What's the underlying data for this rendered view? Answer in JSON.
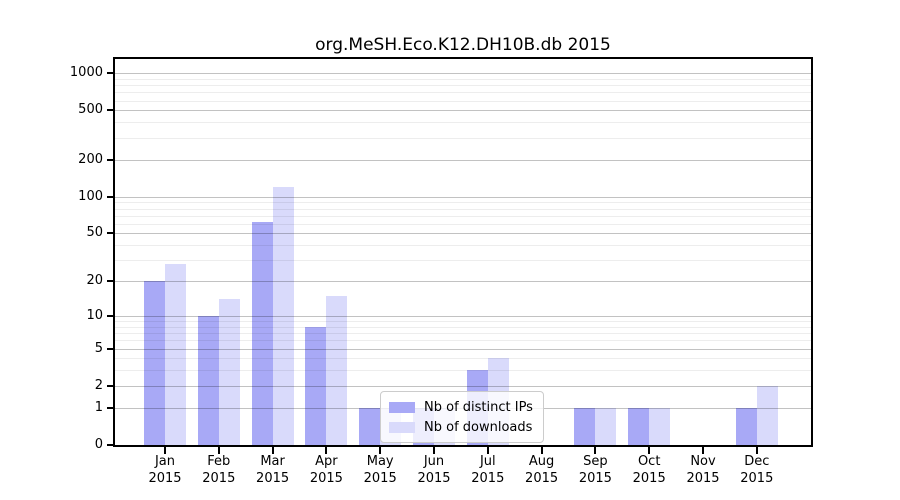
{
  "figure": {
    "title": "org.MeSH.Eco.K12.DH10B.db 2015"
  },
  "chart_data": {
    "type": "bar",
    "title": "org.MeSH.Eco.K12.DH10B.db 2015",
    "categories": [
      "Jan 2015",
      "Feb 2015",
      "Mar 2015",
      "Apr 2015",
      "May 2015",
      "Jun 2015",
      "Jul 2015",
      "Aug 2015",
      "Sep 2015",
      "Oct 2015",
      "Nov 2015",
      "Dec 2015"
    ],
    "series": [
      {
        "name": "Nb of distinct IPs",
        "color": "#a8a9f6",
        "values": [
          20,
          10,
          62,
          8,
          1,
          1,
          3,
          0,
          1,
          1,
          0,
          1
        ]
      },
      {
        "name": "Nb of downloads",
        "color": "#d9dafb",
        "values": [
          28,
          14,
          120,
          15,
          1,
          1,
          4,
          0,
          1,
          1,
          0,
          2
        ]
      }
    ],
    "yscale": "log1p",
    "ylim": [
      0,
      1300
    ],
    "yticks": [
      0,
      1,
      2,
      5,
      10,
      20,
      50,
      100,
      200,
      500,
      1000
    ],
    "minor_yticks": [
      3,
      4,
      6,
      7,
      8,
      9,
      30,
      40,
      60,
      70,
      80,
      90,
      300,
      400,
      600,
      700,
      800,
      900
    ],
    "grid": true,
    "legend": {
      "position": "lower center-left"
    }
  },
  "colors": {
    "bar_dark": "#a8a9f6",
    "bar_light": "#d9dafb",
    "grid_major": "rgba(0,0,0,0.24)",
    "grid_minor": "rgba(0,0,0,0.07)",
    "spine": "#000000",
    "legend_border": "#cccccc",
    "legend_bg": "rgba(255,255,255,0.8)"
  }
}
